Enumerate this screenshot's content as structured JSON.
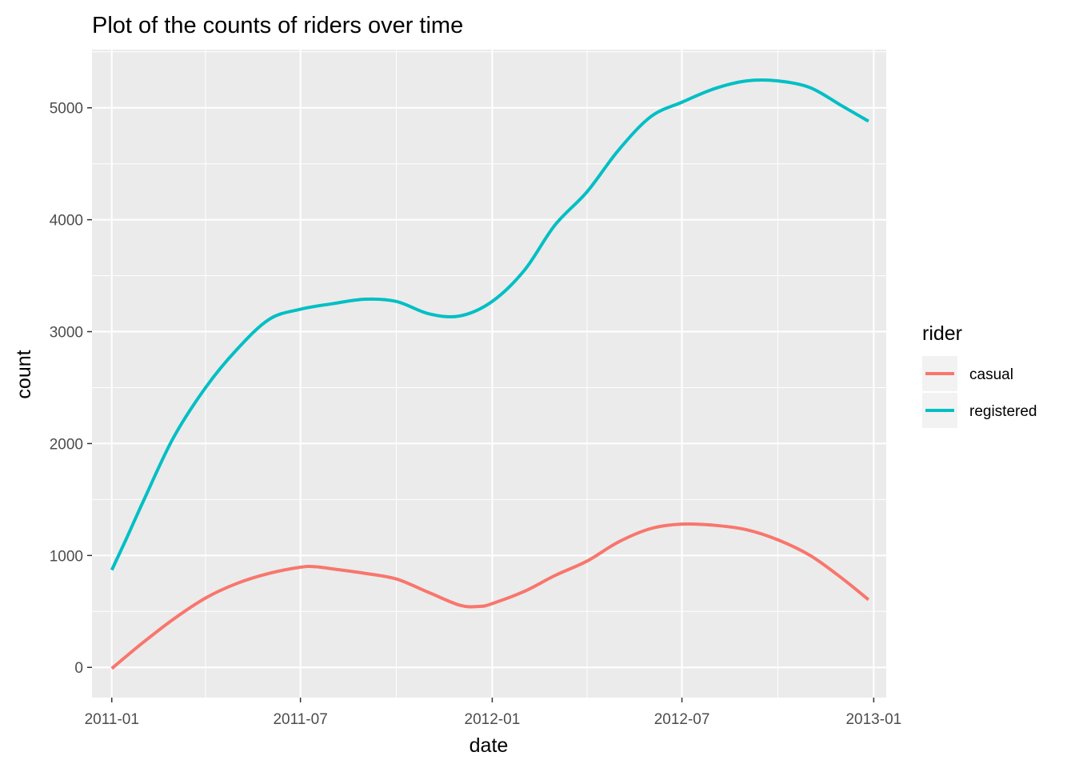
{
  "chart_data": {
    "type": "line",
    "title": "Plot of the counts of riders over time",
    "xlabel": "date",
    "ylabel": "count",
    "x_ticks": [
      {
        "label": "2011-01",
        "value": 0
      },
      {
        "label": "2011-07",
        "value": 6
      },
      {
        "label": "2012-01",
        "value": 12
      },
      {
        "label": "2012-07",
        "value": 18
      },
      {
        "label": "2013-01",
        "value": 24
      }
    ],
    "y_ticks": [
      0,
      1000,
      2000,
      3000,
      4000,
      5000
    ],
    "y_tick_labels": [
      "0",
      "1000",
      "2000",
      "3000",
      "4000",
      "5000"
    ],
    "xlim": [
      "2010-12-13",
      "2013-01-13"
    ],
    "ylim": [
      -270,
      5520
    ],
    "grid": true,
    "legend": {
      "title": "rider",
      "position": "right"
    },
    "series": [
      {
        "name": "casual",
        "color": "#F8766D",
        "points": [
          {
            "x": "2011-01-01",
            "y": -10
          },
          {
            "x": "2011-01-15",
            "y": 100
          },
          {
            "x": "2011-02-01",
            "y": 230
          },
          {
            "x": "2011-03-01",
            "y": 430
          },
          {
            "x": "2011-04-01",
            "y": 620
          },
          {
            "x": "2011-05-01",
            "y": 750
          },
          {
            "x": "2011-06-01",
            "y": 840
          },
          {
            "x": "2011-07-01",
            "y": 895
          },
          {
            "x": "2011-07-15",
            "y": 900
          },
          {
            "x": "2011-08-01",
            "y": 880
          },
          {
            "x": "2011-09-01",
            "y": 840
          },
          {
            "x": "2011-10-01",
            "y": 790
          },
          {
            "x": "2011-11-01",
            "y": 670
          },
          {
            "x": "2011-12-01",
            "y": 555
          },
          {
            "x": "2011-12-20",
            "y": 545
          },
          {
            "x": "2012-01-01",
            "y": 570
          },
          {
            "x": "2012-02-01",
            "y": 680
          },
          {
            "x": "2012-03-01",
            "y": 820
          },
          {
            "x": "2012-04-01",
            "y": 950
          },
          {
            "x": "2012-05-01",
            "y": 1120
          },
          {
            "x": "2012-06-01",
            "y": 1240
          },
          {
            "x": "2012-07-01",
            "y": 1280
          },
          {
            "x": "2012-08-01",
            "y": 1270
          },
          {
            "x": "2012-09-01",
            "y": 1230
          },
          {
            "x": "2012-10-01",
            "y": 1140
          },
          {
            "x": "2012-11-01",
            "y": 1000
          },
          {
            "x": "2012-12-01",
            "y": 800
          },
          {
            "x": "2012-12-27",
            "y": 605
          }
        ]
      },
      {
        "name": "registered",
        "color": "#00BFC4",
        "points": [
          {
            "x": "2011-01-01",
            "y": 870
          },
          {
            "x": "2011-01-15",
            "y": 1150
          },
          {
            "x": "2011-02-01",
            "y": 1500
          },
          {
            "x": "2011-03-01",
            "y": 2050
          },
          {
            "x": "2011-04-01",
            "y": 2500
          },
          {
            "x": "2011-05-01",
            "y": 2840
          },
          {
            "x": "2011-06-01",
            "y": 3110
          },
          {
            "x": "2011-07-01",
            "y": 3200
          },
          {
            "x": "2011-08-01",
            "y": 3250
          },
          {
            "x": "2011-09-01",
            "y": 3290
          },
          {
            "x": "2011-10-01",
            "y": 3270
          },
          {
            "x": "2011-11-01",
            "y": 3160
          },
          {
            "x": "2011-12-01",
            "y": 3140
          },
          {
            "x": "2012-01-01",
            "y": 3270
          },
          {
            "x": "2012-02-01",
            "y": 3550
          },
          {
            "x": "2012-03-01",
            "y": 3950
          },
          {
            "x": "2012-04-01",
            "y": 4250
          },
          {
            "x": "2012-05-01",
            "y": 4620
          },
          {
            "x": "2012-06-01",
            "y": 4920
          },
          {
            "x": "2012-07-01",
            "y": 5050
          },
          {
            "x": "2012-08-01",
            "y": 5170
          },
          {
            "x": "2012-09-01",
            "y": 5240
          },
          {
            "x": "2012-10-01",
            "y": 5240
          },
          {
            "x": "2012-11-01",
            "y": 5180
          },
          {
            "x": "2012-12-01",
            "y": 5020
          },
          {
            "x": "2012-12-27",
            "y": 4880
          }
        ]
      }
    ]
  }
}
